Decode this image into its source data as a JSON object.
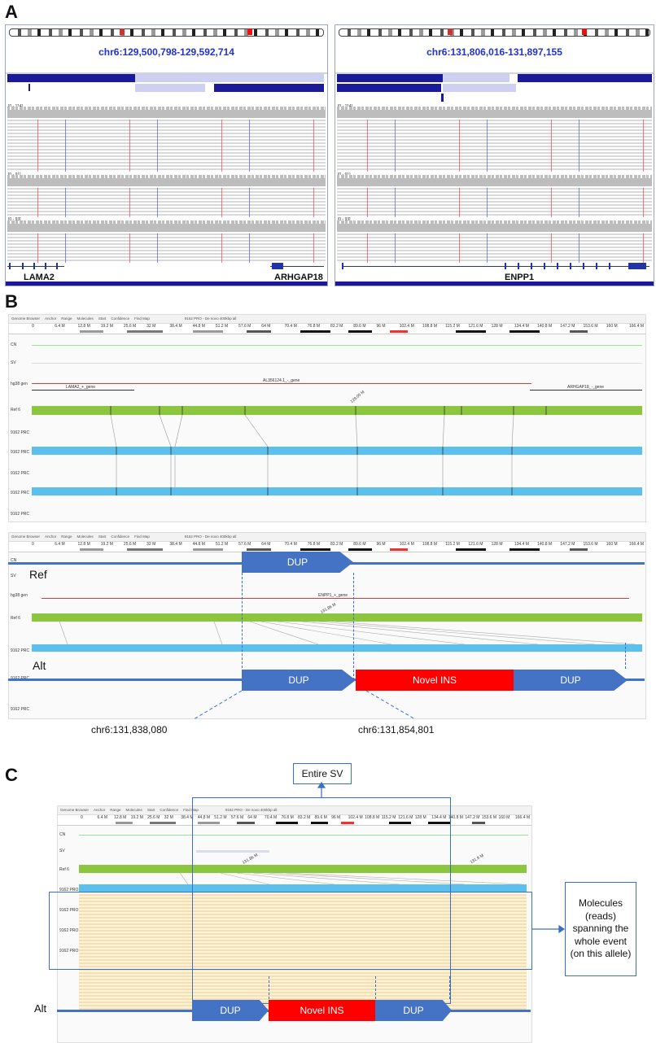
{
  "panels": {
    "a": "A",
    "b": "B",
    "c": "C"
  },
  "panel_a": {
    "left": {
      "locus": "chr6:129,500,798-129,592,714",
      "cov_labels": [
        "[0 - 114]",
        "[0 - 91]",
        "[0 - 93]"
      ],
      "genes": [
        "LAMA2",
        "ARHGAP18"
      ]
    },
    "right": {
      "locus": "chr6:131,806,016-131,897,155",
      "cov_labels": [
        "[0 - 114]",
        "[0 - 91]",
        "[0 - 93]"
      ],
      "genes": [
        "ENPP1"
      ]
    }
  },
  "bionano": {
    "toolbar": [
      "Genome Browser",
      "Anchor",
      "Range",
      "Molecules",
      "Start",
      "Confidence",
      "Find Map"
    ],
    "toolbar_title": "9162 PRO - De novo 400kbp all",
    "ticks": [
      "0",
      "6.4 M",
      "12.8 M",
      "19.2 M",
      "25.6 M",
      "32 M",
      "38.4 M",
      "44.8 M",
      "51.2 M",
      "57.6 M",
      "64 M",
      "70.4 M",
      "76.8 M",
      "83.2 M",
      "89.6 M",
      "96 M",
      "102.4 M",
      "108.8 M",
      "115.2 M",
      "121.6 M",
      "128 M",
      "134.4 M",
      "140.8 M",
      "147.2 M",
      "153.6 M",
      "160 M",
      "166.4 M"
    ],
    "row_labels": {
      "cn": "CN",
      "sv": "SV",
      "hg38": "hg38 gen",
      "ref": "Ref 6",
      "mol": "9162 PRC"
    }
  },
  "panel_b_top": {
    "genes": [
      "LAMA2_+_gene",
      "AL356124.1_-_gene",
      "ARHGAP18_-_gene"
    ],
    "pos_label": "129.05 M"
  },
  "panel_b_bottom": {
    "ref_label": "Ref",
    "alt_label": "Alt",
    "gene": "ENPP1_+_gene",
    "pos_label": "131.86 M",
    "dup": "DUP",
    "ins": "Novel INS",
    "coords": [
      "chr6:131,838,080",
      "chr6:131,854,801"
    ]
  },
  "panel_c": {
    "entire_sv": "Entire SV",
    "molecules_callout": "Molecules (reads) spanning the whole event (on this allele)",
    "alt_label": "Alt",
    "dup": "DUP",
    "ins": "Novel INS",
    "mol_label": "9162 PRO",
    "pos_labels": [
      "131.86 M",
      "131.9 M"
    ]
  },
  "colors": {
    "dup_blue": "#4472c4",
    "ins_red": "#ff0000",
    "ref_green": "#8cc63f",
    "mol_blue": "#5bc0eb",
    "gene_navy": "#1a1a9a"
  }
}
